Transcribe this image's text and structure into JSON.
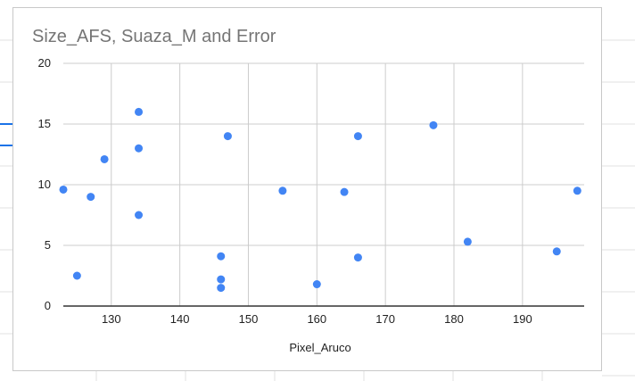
{
  "chart_data": {
    "type": "scatter",
    "title": "Size_AFS, Suaza_M and Error",
    "x_label": "Pixel_Aruco",
    "x": [
      123,
      125,
      127,
      129,
      134,
      134,
      134,
      146,
      146,
      146,
      147,
      155,
      160,
      164,
      166,
      166,
      177,
      182,
      195,
      198
    ],
    "values": [
      9.6,
      2.5,
      9.0,
      12.1,
      16,
      13,
      7.5,
      4.1,
      2.2,
      1.5,
      14.0,
      9.5,
      1.8,
      9.4,
      14.0,
      4.0,
      14.9,
      5.3,
      4.5,
      9.5
    ],
    "color": "#4285f4",
    "xlim": [
      123,
      199
    ],
    "xticks": [
      130,
      140,
      150,
      160,
      170,
      180,
      190
    ],
    "ylim": [
      0,
      20
    ],
    "yticks": [
      0,
      5,
      10,
      15,
      20
    ],
    "grid": true
  }
}
